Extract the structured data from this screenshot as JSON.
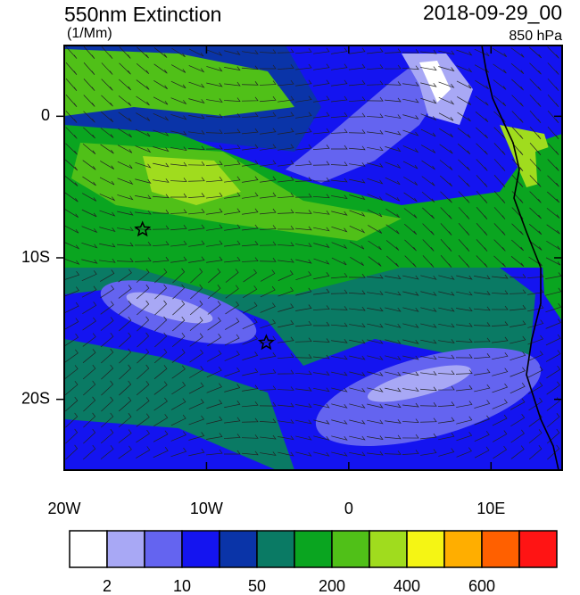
{
  "chart_data": {
    "type": "map",
    "title": "550nm Extinction",
    "subtitle": "(1/Mm)",
    "date": "2018-09-29_00",
    "level": "850 hPa",
    "xlim": [
      -20,
      15
    ],
    "ylim": [
      -25,
      5
    ],
    "xticks": [
      {
        "value": -20,
        "label": "20W"
      },
      {
        "value": -10,
        "label": "10W"
      },
      0,
      {
        "value": 10,
        "label": "10E"
      }
    ],
    "yticks": [
      0,
      {
        "value": -10,
        "label": "10S"
      },
      {
        "value": -20,
        "label": "20S"
      }
    ],
    "markers": {
      "x": [
        -14.5,
        -5.8
      ],
      "y": [
        -8,
        -16
      ]
    },
    "colorbar": {
      "colors": [
        "#ffffff",
        "#a8a8f5",
        "#6464f0",
        "#1414f0",
        "#0a34a8",
        "#0a7a64",
        "#0aa520",
        "#50c018",
        "#a0dc1e",
        "#f5f514",
        "#ffae00",
        "#ff6000",
        "#ff1414"
      ],
      "ticks": [
        2,
        10,
        50,
        200,
        400,
        600
      ]
    }
  }
}
